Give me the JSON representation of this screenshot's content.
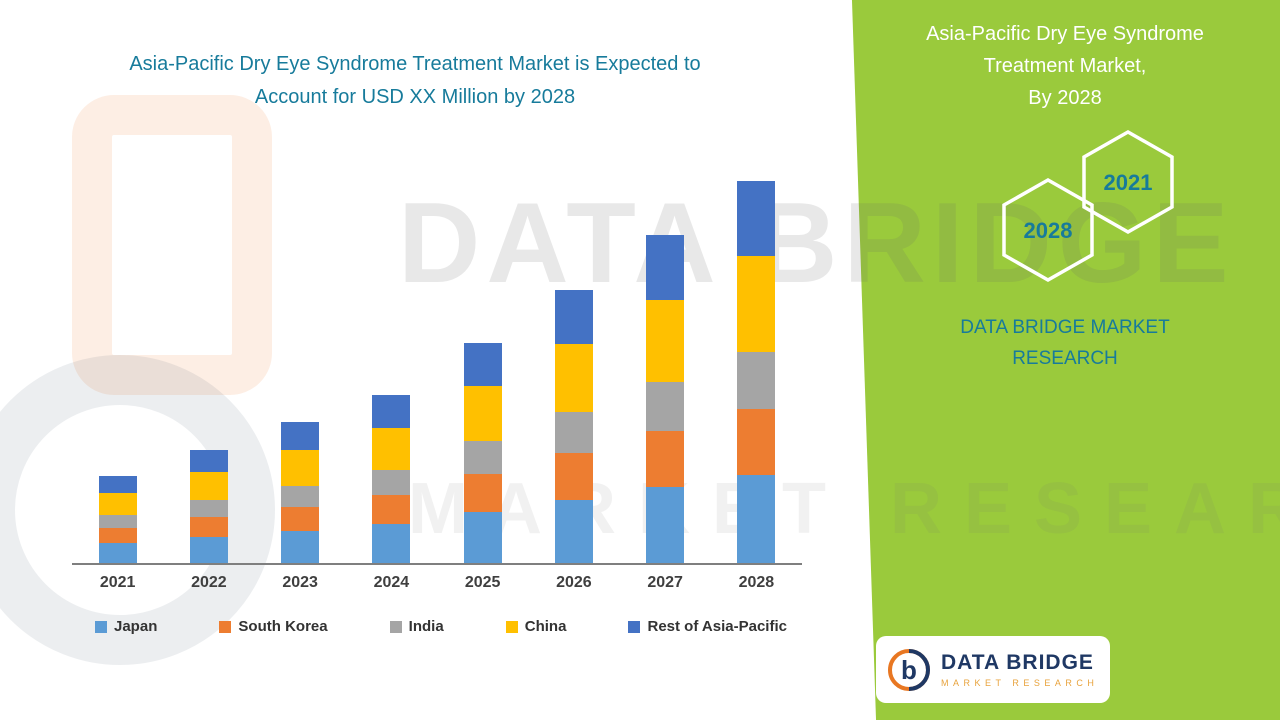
{
  "colors": {
    "teal_text": "#177B9B",
    "green_panel": "#9ACA3C",
    "axis": "#7f7f7f",
    "tick_label": "#3f3f3f",
    "logo_navy": "#1F3864",
    "logo_orange": "#E87722"
  },
  "header": {
    "title_line1": "Asia-Pacific Dry Eye Syndrome Treatment Market is Expected to",
    "title_line2": "Account for USD XX Million by 2028"
  },
  "side_panel": {
    "title_lines": [
      "Asia-Pacific Dry Eye Syndrome",
      "Treatment Market,",
      "By 2028"
    ],
    "hex_back_label": "2028",
    "hex_front_label": "2021",
    "brand_line1": "DATA BRIDGE MARKET",
    "brand_line2": "RESEARCH"
  },
  "watermark": {
    "line1": "DATA BRIDGE",
    "line2": "MARKET RESEARCH"
  },
  "chart_data": {
    "type": "bar",
    "stacked": true,
    "title": "Asia-Pacific Dry Eye Syndrome Treatment Market is Expected to Account for USD XX Million by 2028",
    "xlabel": "",
    "ylabel": "",
    "y_axis_visible": false,
    "grid": false,
    "legend_position": "bottom",
    "values_note": "Y-axis unlabeled in source (USD XX Million placeholder); values are approximate relative heights estimated from bars",
    "categories": [
      "2021",
      "2022",
      "2023",
      "2024",
      "2025",
      "2026",
      "2027",
      "2028"
    ],
    "series": [
      {
        "name": "Japan",
        "color": "#5B9BD5",
        "values": [
          20,
          26,
          32,
          39,
          51,
          63,
          76,
          88
        ]
      },
      {
        "name": "South Korea",
        "color": "#ED7D31",
        "values": [
          15,
          20,
          24,
          29,
          38,
          47,
          56,
          66
        ]
      },
      {
        "name": "India",
        "color": "#A5A5A5",
        "values": [
          13,
          17,
          21,
          25,
          33,
          41,
          49,
          57
        ]
      },
      {
        "name": "China",
        "color": "#FFC000",
        "values": [
          22,
          28,
          36,
          42,
          55,
          68,
          82,
          96
        ]
      },
      {
        "name": "Rest of Asia-Pacific",
        "color": "#4472C4",
        "values": [
          17,
          22,
          28,
          33,
          43,
          54,
          65,
          75
        ]
      }
    ],
    "totals": [
      87,
      113,
      141,
      168,
      220,
      273,
      328,
      382
    ]
  },
  "logo_card": {
    "letter": "b",
    "brand": "DATA BRIDGE",
    "sub": "MARKET  RESEARCH"
  }
}
